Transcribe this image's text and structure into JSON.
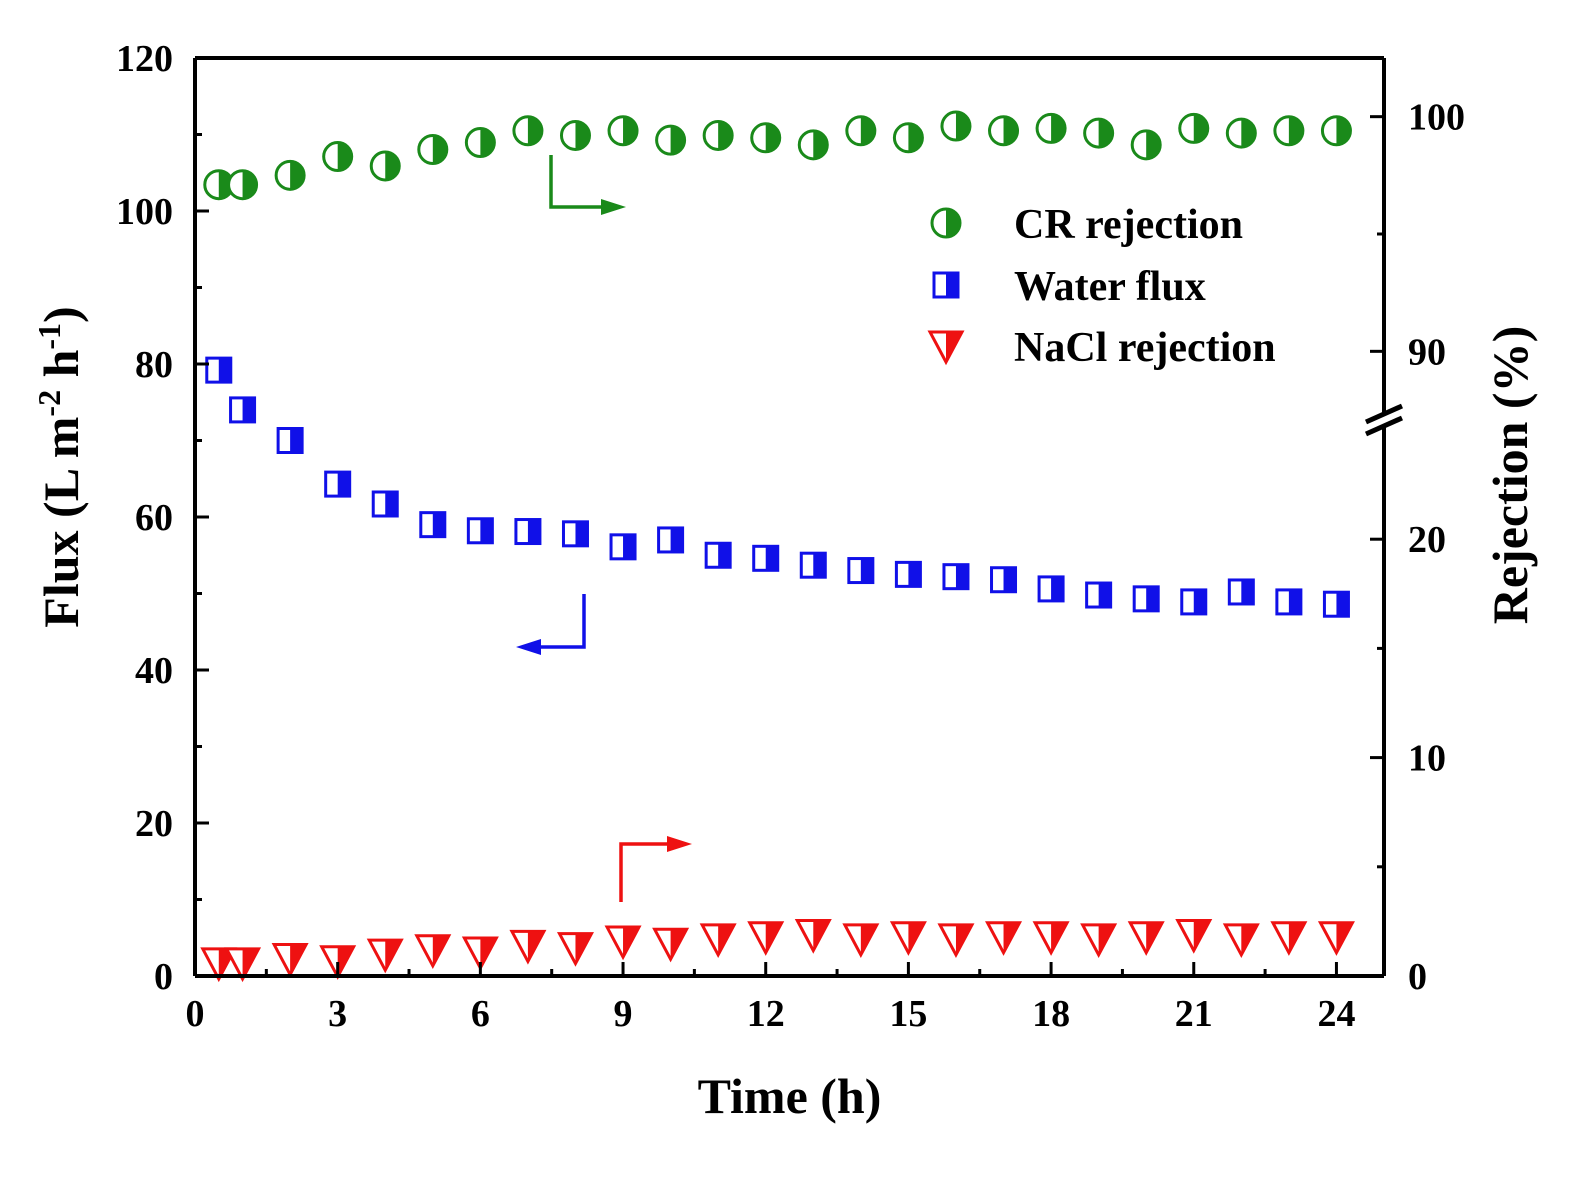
{
  "chart_data": {
    "type": "scatter",
    "xlabel": "Time (h)",
    "ylabel_left": {
      "main": "Flux (L m",
      "sup1": "-2",
      "mid": " h",
      "sup2": "-1",
      "end": ")"
    },
    "ylabel_right": "Rejection (%)",
    "xlim": [
      0,
      25
    ],
    "ylim_left": [
      0,
      120
    ],
    "ylim_right_lower": [
      0,
      25
    ],
    "ylim_right_upper": [
      87.5,
      102.5
    ],
    "axis_break": "right axis broken between 25 and 87.5",
    "x_ticks": [
      0,
      3,
      6,
      9,
      12,
      15,
      18,
      21,
      24
    ],
    "y_left_ticks": [
      0,
      20,
      40,
      60,
      80,
      100,
      120
    ],
    "y_right_ticks_lower": [
      0,
      10,
      20
    ],
    "y_right_ticks_upper": [
      90,
      100
    ],
    "tick_labels": {
      "x": [
        "0",
        "3",
        "6",
        "9",
        "12",
        "15",
        "18",
        "21",
        "24"
      ],
      "y_left": [
        "0",
        "20",
        "40",
        "60",
        "80",
        "100",
        "120"
      ],
      "y_right": [
        "0",
        "10",
        "20",
        "90",
        "100"
      ]
    },
    "legend_position": "top-right",
    "series": [
      {
        "name": "CR rejection",
        "axis": "right",
        "color": "#1a8a1a",
        "marker": "circle-half",
        "x": [
          0.5,
          1,
          2,
          3,
          4,
          5,
          6,
          7,
          8,
          9,
          10,
          11,
          12,
          13,
          14,
          15,
          16,
          17,
          18,
          19,
          20,
          21,
          22,
          23,
          24
        ],
        "values": [
          97.1,
          97.1,
          97.5,
          98.3,
          97.9,
          98.6,
          98.9,
          99.4,
          99.2,
          99.4,
          99.0,
          99.2,
          99.1,
          98.8,
          99.4,
          99.1,
          99.6,
          99.4,
          99.5,
          99.3,
          98.8,
          99.5,
          99.3,
          99.4,
          99.4
        ]
      },
      {
        "name": "Water flux",
        "axis": "left",
        "color": "#1010e8",
        "marker": "square-half",
        "x": [
          0.5,
          1,
          2,
          3,
          4,
          5,
          6,
          7,
          8,
          9,
          10,
          11,
          12,
          13,
          14,
          15,
          16,
          17,
          18,
          19,
          20,
          21,
          22,
          23,
          24
        ],
        "values": [
          79.2,
          74.0,
          70.0,
          64.3,
          61.7,
          59.0,
          58.2,
          58.1,
          57.8,
          56.1,
          57.0,
          55.0,
          54.6,
          53.7,
          53.0,
          52.5,
          52.2,
          51.8,
          50.6,
          49.8,
          49.3,
          48.9,
          50.2,
          48.9,
          48.6
        ]
      },
      {
        "name": "NaCl rejection",
        "axis": "right",
        "color": "#ee1111",
        "marker": "triangle-down",
        "x": [
          0.5,
          1,
          2,
          3,
          4,
          5,
          6,
          7,
          8,
          9,
          10,
          11,
          12,
          13,
          14,
          15,
          16,
          17,
          18,
          19,
          20,
          21,
          22,
          23,
          24
        ],
        "values": [
          0.6,
          0.6,
          0.8,
          0.7,
          1.0,
          1.2,
          1.1,
          1.4,
          1.3,
          1.6,
          1.5,
          1.7,
          1.8,
          1.9,
          1.7,
          1.8,
          1.7,
          1.8,
          1.8,
          1.7,
          1.8,
          1.9,
          1.7,
          1.8,
          1.8
        ]
      }
    ]
  }
}
